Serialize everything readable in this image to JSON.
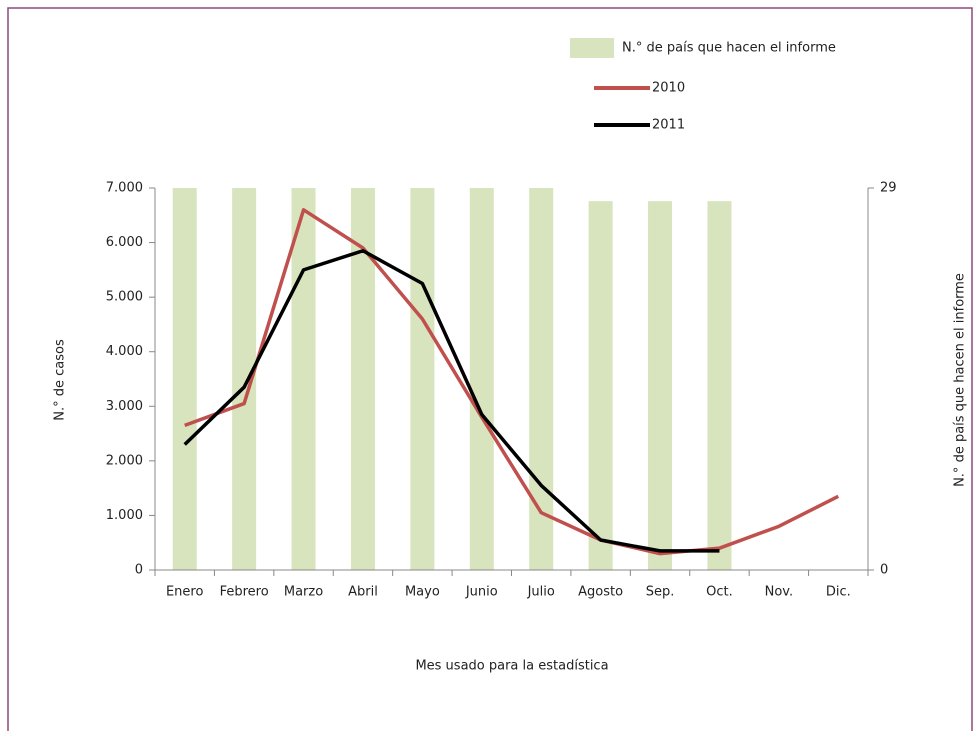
{
  "chart_data": {
    "type": "bar-line",
    "x_label": "Mes usado para la estadística",
    "y_label": "N.° de casos",
    "y2_label": "N.° de país que hacen el informe",
    "categories": [
      "Enero",
      "Febrero",
      "Marzo",
      "Abril",
      "Mayo",
      "Junio",
      "Julio",
      "Agosto",
      "Sep.",
      "Oct.",
      "Nov.",
      "Dic."
    ],
    "series": [
      {
        "name": "N.° de país que hacen el informe",
        "kind": "bar",
        "axis": "y2",
        "color": "#d7e4bd",
        "values": [
          29,
          29,
          29,
          29,
          29,
          29,
          29,
          28,
          28,
          28,
          null,
          null
        ]
      },
      {
        "name": "2010",
        "kind": "line",
        "color": "#c0504d",
        "values": [
          2650,
          3050,
          6600,
          5900,
          4600,
          2800,
          1050,
          550,
          300,
          400,
          800,
          1350
        ]
      },
      {
        "name": "2011",
        "kind": "line",
        "color": "#000000",
        "values": [
          2300,
          3350,
          5500,
          5850,
          5250,
          2850,
          1550,
          550,
          350,
          350,
          null,
          null
        ]
      }
    ],
    "ylim": [
      0,
      7000
    ],
    "yticks": [
      {
        "value": 0,
        "label": "0"
      },
      {
        "value": 1000,
        "label": "1.000"
      },
      {
        "value": 2000,
        "label": "2.000"
      },
      {
        "value": 3000,
        "label": "3.000"
      },
      {
        "value": 4000,
        "label": "4.000"
      },
      {
        "value": 5000,
        "label": "5.000"
      },
      {
        "value": 6000,
        "label": "6.000"
      },
      {
        "value": 7000,
        "label": "7.000"
      }
    ],
    "y2lim": [
      0,
      29
    ],
    "y2ticks": [
      0,
      29
    ]
  }
}
